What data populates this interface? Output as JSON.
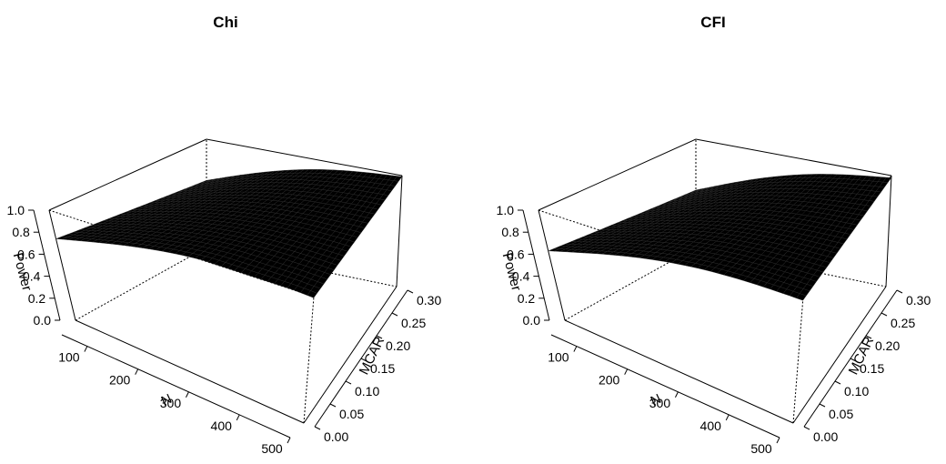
{
  "chart_data": [
    {
      "type": "surface",
      "title": "Chi",
      "xlabel": "N",
      "ylabel": "MCAR",
      "zlabel": "Power",
      "x_range": [
        50,
        500
      ],
      "y_range": [
        0.0,
        0.3
      ],
      "z_range": [
        0.0,
        1.0
      ],
      "x_ticks": [
        "100",
        "200",
        "300",
        "400",
        "500"
      ],
      "y_ticks": [
        "0.00",
        "0.05",
        "0.10",
        "0.15",
        "0.20",
        "0.25",
        "0.30"
      ],
      "z_ticks": [
        "0.0",
        "0.2",
        "0.4",
        "0.6",
        "0.8",
        "1.0"
      ],
      "surface_corners": {
        "n50_mcar0": 0.74,
        "n500_mcar0": 0.99,
        "n50_mcar030": 0.62,
        "n500_mcar030": 0.99
      },
      "surface_color": "#000000"
    },
    {
      "type": "surface",
      "title": "CFI",
      "xlabel": "N",
      "ylabel": "MCAR",
      "zlabel": "Power",
      "x_range": [
        50,
        500
      ],
      "y_range": [
        0.0,
        0.3
      ],
      "z_range": [
        0.0,
        1.0
      ],
      "x_ticks": [
        "100",
        "200",
        "300",
        "400",
        "500"
      ],
      "y_ticks": [
        "0.00",
        "0.05",
        "0.10",
        "0.15",
        "0.20",
        "0.25",
        "0.30"
      ],
      "z_ticks": [
        "0.0",
        "0.2",
        "0.4",
        "0.6",
        "0.8",
        "1.0"
      ],
      "surface_corners": {
        "n50_mcar0": 0.63,
        "n500_mcar0": 0.97,
        "n50_mcar030": 0.53,
        "n500_mcar030": 0.98
      },
      "surface_color": "#000000"
    }
  ]
}
